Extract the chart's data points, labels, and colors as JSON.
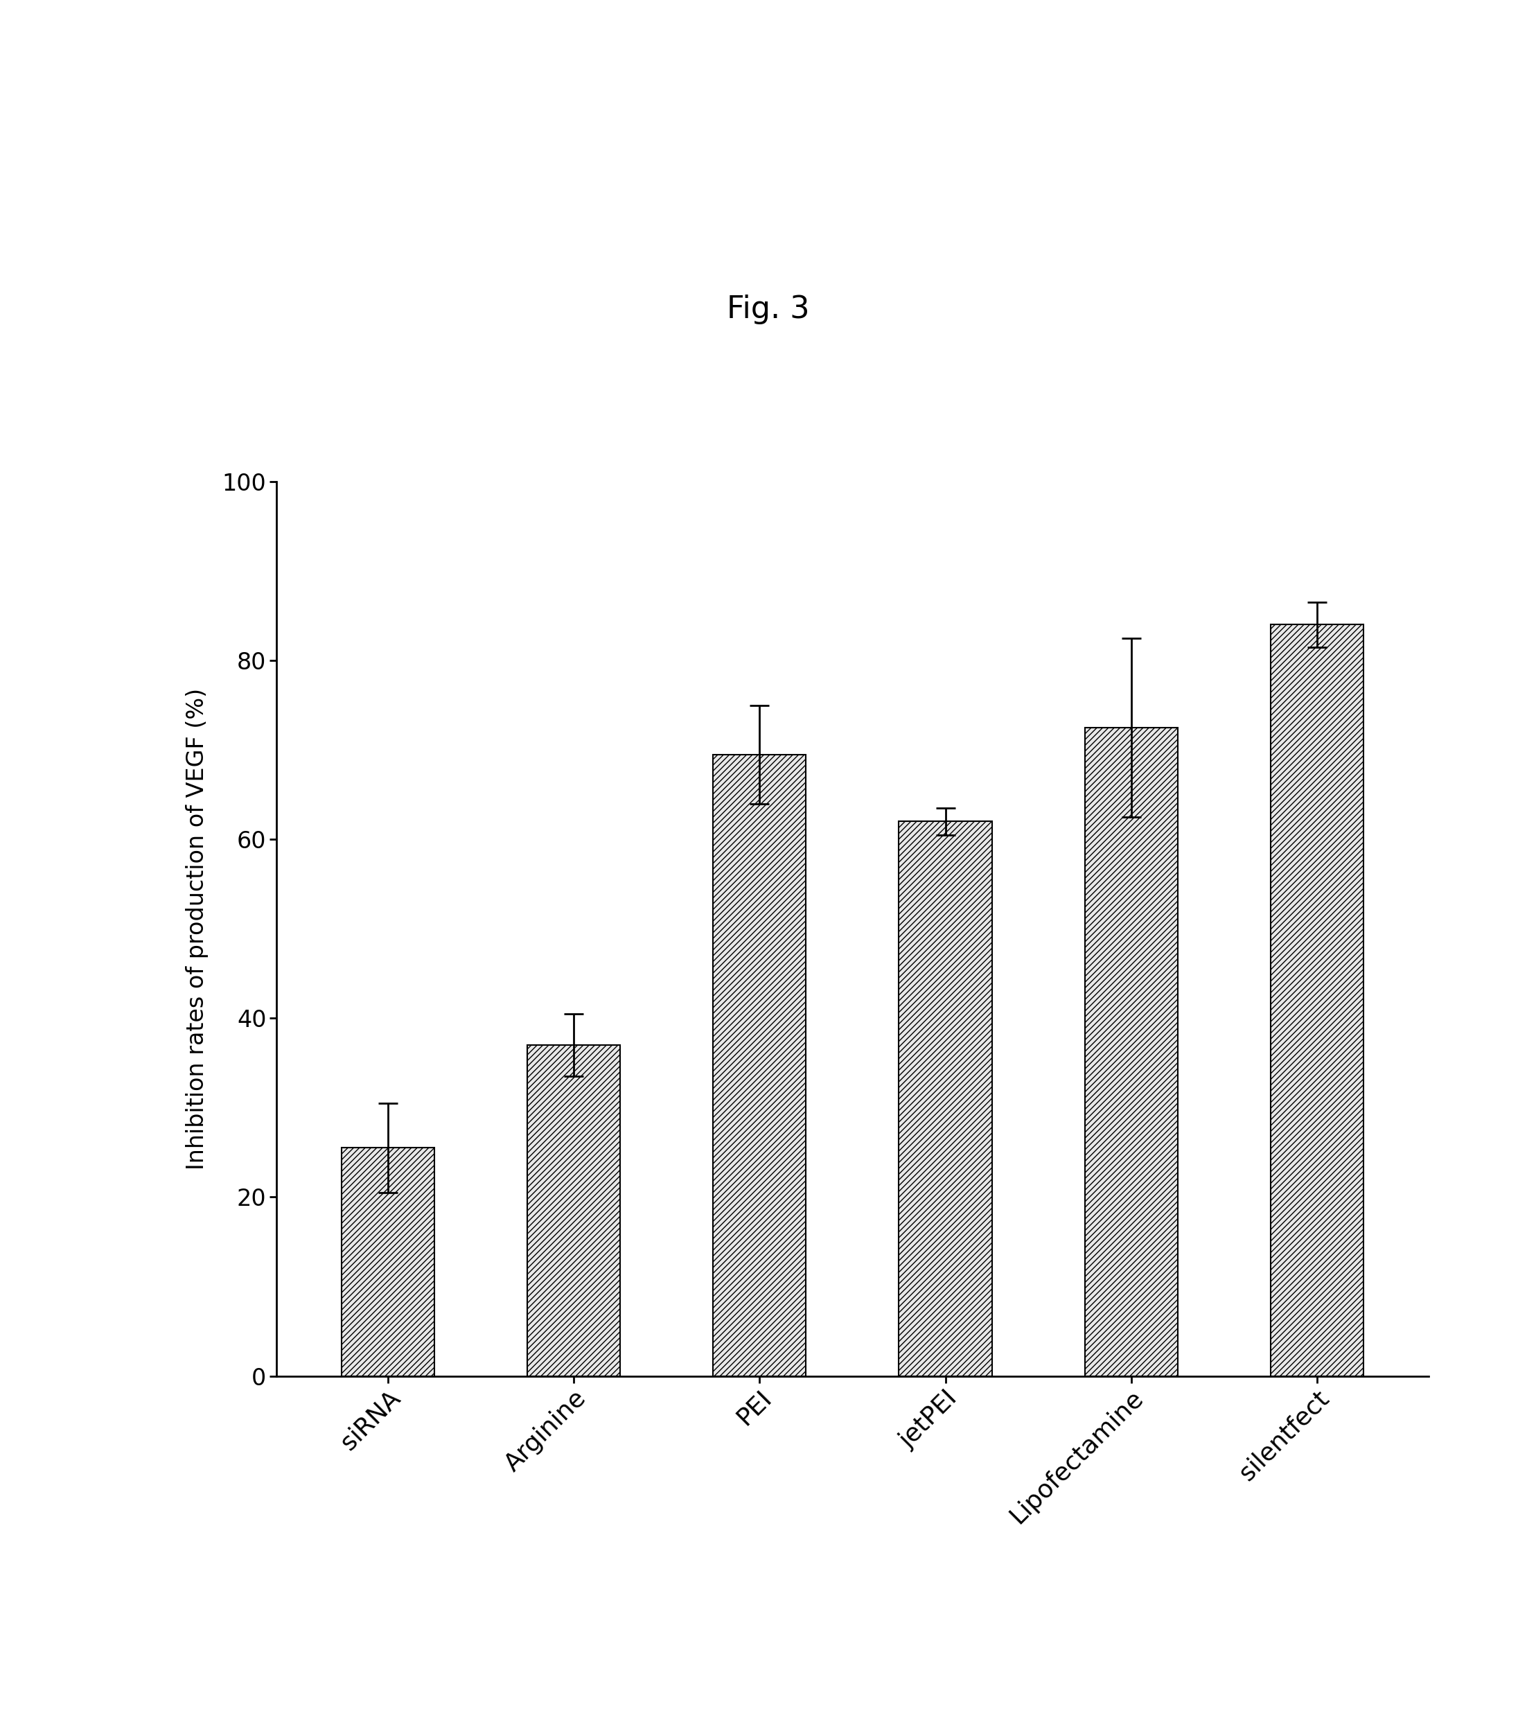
{
  "title": "Fig. 3",
  "categories": [
    "siRNA",
    "Arginine",
    "PEI",
    "jetPEI",
    "Lipofectamine",
    "silentfect"
  ],
  "values": [
    25.5,
    37.0,
    69.5,
    62.0,
    72.5,
    84.0
  ],
  "errors": [
    5.0,
    3.5,
    5.5,
    1.5,
    10.0,
    2.5
  ],
  "ylabel": "Inhibition rates of production of VEGF (%)",
  "ylim": [
    0,
    100
  ],
  "yticks": [
    0,
    20,
    40,
    60,
    80,
    100
  ],
  "bar_color": "#e8e8e8",
  "bar_edgecolor": "#000000",
  "hatch": "////",
  "background_color": "#ffffff",
  "title_fontsize": 32,
  "axis_fontsize": 24,
  "tick_fontsize": 24,
  "xlabel_fontsize": 26,
  "bar_width": 0.5
}
